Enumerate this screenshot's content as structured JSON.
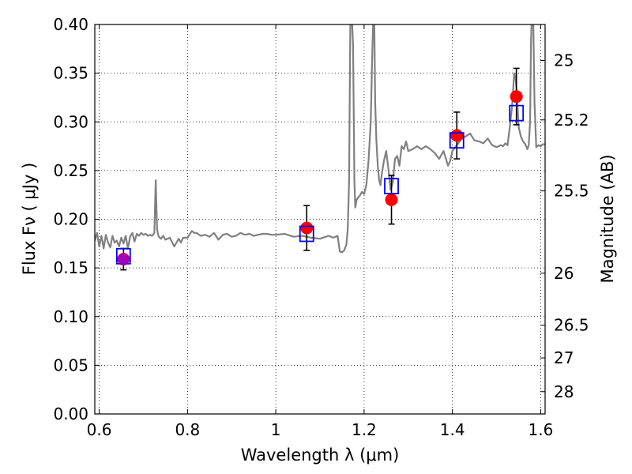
{
  "chart_data": {
    "type": "scatter",
    "xlabel": "Wavelength  λ (μm)",
    "ylabel": "Flux  Fν  ( μJy )",
    "y2label": "Magnitude (AB)",
    "xlim": [
      0.59,
      1.61
    ],
    "ylim": [
      0.0,
      0.4
    ],
    "x_ticks": [
      {
        "value": 0.6,
        "label": "0.6"
      },
      {
        "value": 0.8,
        "label": "0.8"
      },
      {
        "value": 1.0,
        "label": "1"
      },
      {
        "value": 1.2,
        "label": "1.2"
      },
      {
        "value": 1.4,
        "label": "1.4"
      },
      {
        "value": 1.6,
        "label": "1.6"
      }
    ],
    "y_ticks": [
      {
        "value": 0.0,
        "label": "0.00"
      },
      {
        "value": 0.05,
        "label": "0.05"
      },
      {
        "value": 0.1,
        "label": "0.10"
      },
      {
        "value": 0.15,
        "label": "0.15"
      },
      {
        "value": 0.2,
        "label": "0.20"
      },
      {
        "value": 0.25,
        "label": "0.25"
      },
      {
        "value": 0.3,
        "label": "0.30"
      },
      {
        "value": 0.35,
        "label": "0.35"
      },
      {
        "value": 0.4,
        "label": "0.40"
      }
    ],
    "mag_ticks": [
      {
        "value": 25,
        "label": "25"
      },
      {
        "value": 25.2,
        "label": "25.2"
      },
      {
        "value": 25.5,
        "label": "25.5"
      },
      {
        "value": 26,
        "label": "26"
      },
      {
        "value": 26.5,
        "label": "26.5"
      },
      {
        "value": 27,
        "label": "27"
      },
      {
        "value": 28,
        "label": "28"
      }
    ],
    "grid": true,
    "colors": {
      "spectrum": "#808080",
      "observed": "#ff0000",
      "model_box": "#0000ff",
      "first_point": "#9400d3",
      "errorbar": "#000000"
    },
    "spectrum": {
      "name": "",
      "x": [
        0.59,
        0.595,
        0.6,
        0.605,
        0.61,
        0.615,
        0.62,
        0.625,
        0.63,
        0.635,
        0.64,
        0.645,
        0.65,
        0.655,
        0.66,
        0.665,
        0.67,
        0.675,
        0.68,
        0.685,
        0.69,
        0.695,
        0.7,
        0.705,
        0.71,
        0.715,
        0.72,
        0.725,
        0.728,
        0.731,
        0.734,
        0.737,
        0.74,
        0.745,
        0.75,
        0.755,
        0.76,
        0.77,
        0.78,
        0.785,
        0.79,
        0.8,
        0.81,
        0.815,
        0.82,
        0.83,
        0.84,
        0.85,
        0.86,
        0.87,
        0.88,
        0.89,
        0.9,
        0.91,
        0.92,
        0.93,
        0.94,
        0.95,
        0.96,
        0.97,
        0.98,
        0.99,
        1.0,
        1.02,
        1.04,
        1.06,
        1.08,
        1.1,
        1.12,
        1.13,
        1.14,
        1.145,
        1.15,
        1.155,
        1.16,
        1.163,
        1.166,
        1.168,
        1.169,
        1.172,
        1.175,
        1.178,
        1.18,
        1.183,
        1.186,
        1.19,
        1.195,
        1.2,
        1.205,
        1.21,
        1.215,
        1.218,
        1.221,
        1.223,
        1.225,
        1.228,
        1.231,
        1.234,
        1.237,
        1.24,
        1.245,
        1.25,
        1.255,
        1.26,
        1.265,
        1.27,
        1.275,
        1.28,
        1.285,
        1.29,
        1.295,
        1.3,
        1.31,
        1.32,
        1.33,
        1.34,
        1.35,
        1.36,
        1.37,
        1.38,
        1.39,
        1.395,
        1.4,
        1.41,
        1.42,
        1.43,
        1.44,
        1.45,
        1.46,
        1.47,
        1.48,
        1.49,
        1.5,
        1.51,
        1.515,
        1.52,
        1.525,
        1.53,
        1.535,
        1.54,
        1.543,
        1.546,
        1.55,
        1.555,
        1.56,
        1.565,
        1.57,
        1.573,
        1.576,
        1.578,
        1.58,
        1.583,
        1.586,
        1.59,
        1.595,
        1.6,
        1.605,
        1.61
      ],
      "y": [
        0.178,
        0.186,
        0.172,
        0.183,
        0.17,
        0.184,
        0.176,
        0.171,
        0.183,
        0.176,
        0.178,
        0.172,
        0.181,
        0.175,
        0.183,
        0.17,
        0.182,
        0.186,
        0.177,
        0.185,
        0.183,
        0.186,
        0.184,
        0.185,
        0.183,
        0.184,
        0.183,
        0.186,
        0.24,
        0.19,
        0.183,
        0.181,
        0.18,
        0.183,
        0.179,
        0.18,
        0.181,
        0.172,
        0.18,
        0.176,
        0.181,
        0.181,
        0.188,
        0.186,
        0.186,
        0.183,
        0.184,
        0.182,
        0.186,
        0.179,
        0.184,
        0.185,
        0.182,
        0.183,
        0.186,
        0.184,
        0.185,
        0.183,
        0.184,
        0.185,
        0.185,
        0.184,
        0.184,
        0.185,
        0.182,
        0.183,
        0.181,
        0.18,
        0.183,
        0.181,
        0.183,
        0.167,
        0.166,
        0.168,
        0.174,
        0.19,
        0.24,
        0.36,
        0.41,
        0.41,
        0.38,
        0.24,
        0.212,
        0.22,
        0.222,
        0.224,
        0.228,
        0.226,
        0.235,
        0.26,
        0.3,
        0.36,
        0.41,
        0.41,
        0.32,
        0.28,
        0.255,
        0.24,
        0.235,
        0.246,
        0.26,
        0.27,
        0.252,
        0.23,
        0.238,
        0.262,
        0.265,
        0.255,
        0.275,
        0.272,
        0.28,
        0.27,
        0.272,
        0.275,
        0.272,
        0.275,
        0.272,
        0.268,
        0.262,
        0.27,
        0.255,
        0.26,
        0.27,
        0.276,
        0.282,
        0.285,
        0.288,
        0.281,
        0.28,
        0.278,
        0.283,
        0.276,
        0.274,
        0.276,
        0.275,
        0.278,
        0.276,
        0.295,
        0.315,
        0.35,
        0.345,
        0.33,
        0.295,
        0.285,
        0.28,
        0.277,
        0.272,
        0.276,
        0.3,
        0.38,
        0.41,
        0.41,
        0.32,
        0.274,
        0.276,
        0.275,
        0.277,
        0.277
      ],
      "clip_top": 0.4
    },
    "observed_points": {
      "name": "",
      "x": [
        0.655,
        1.07,
        1.262,
        1.41,
        1.545
      ],
      "y": [
        0.159,
        0.191,
        0.22,
        0.286,
        0.326
      ],
      "yerr": [
        0.011,
        0.023,
        0.025,
        0.024,
        0.029
      ]
    },
    "model_boxes": {
      "name": "",
      "x": [
        0.655,
        1.07,
        1.262,
        1.41,
        1.545
      ],
      "y": [
        0.162,
        0.185,
        0.234,
        0.281,
        0.309
      ]
    }
  }
}
